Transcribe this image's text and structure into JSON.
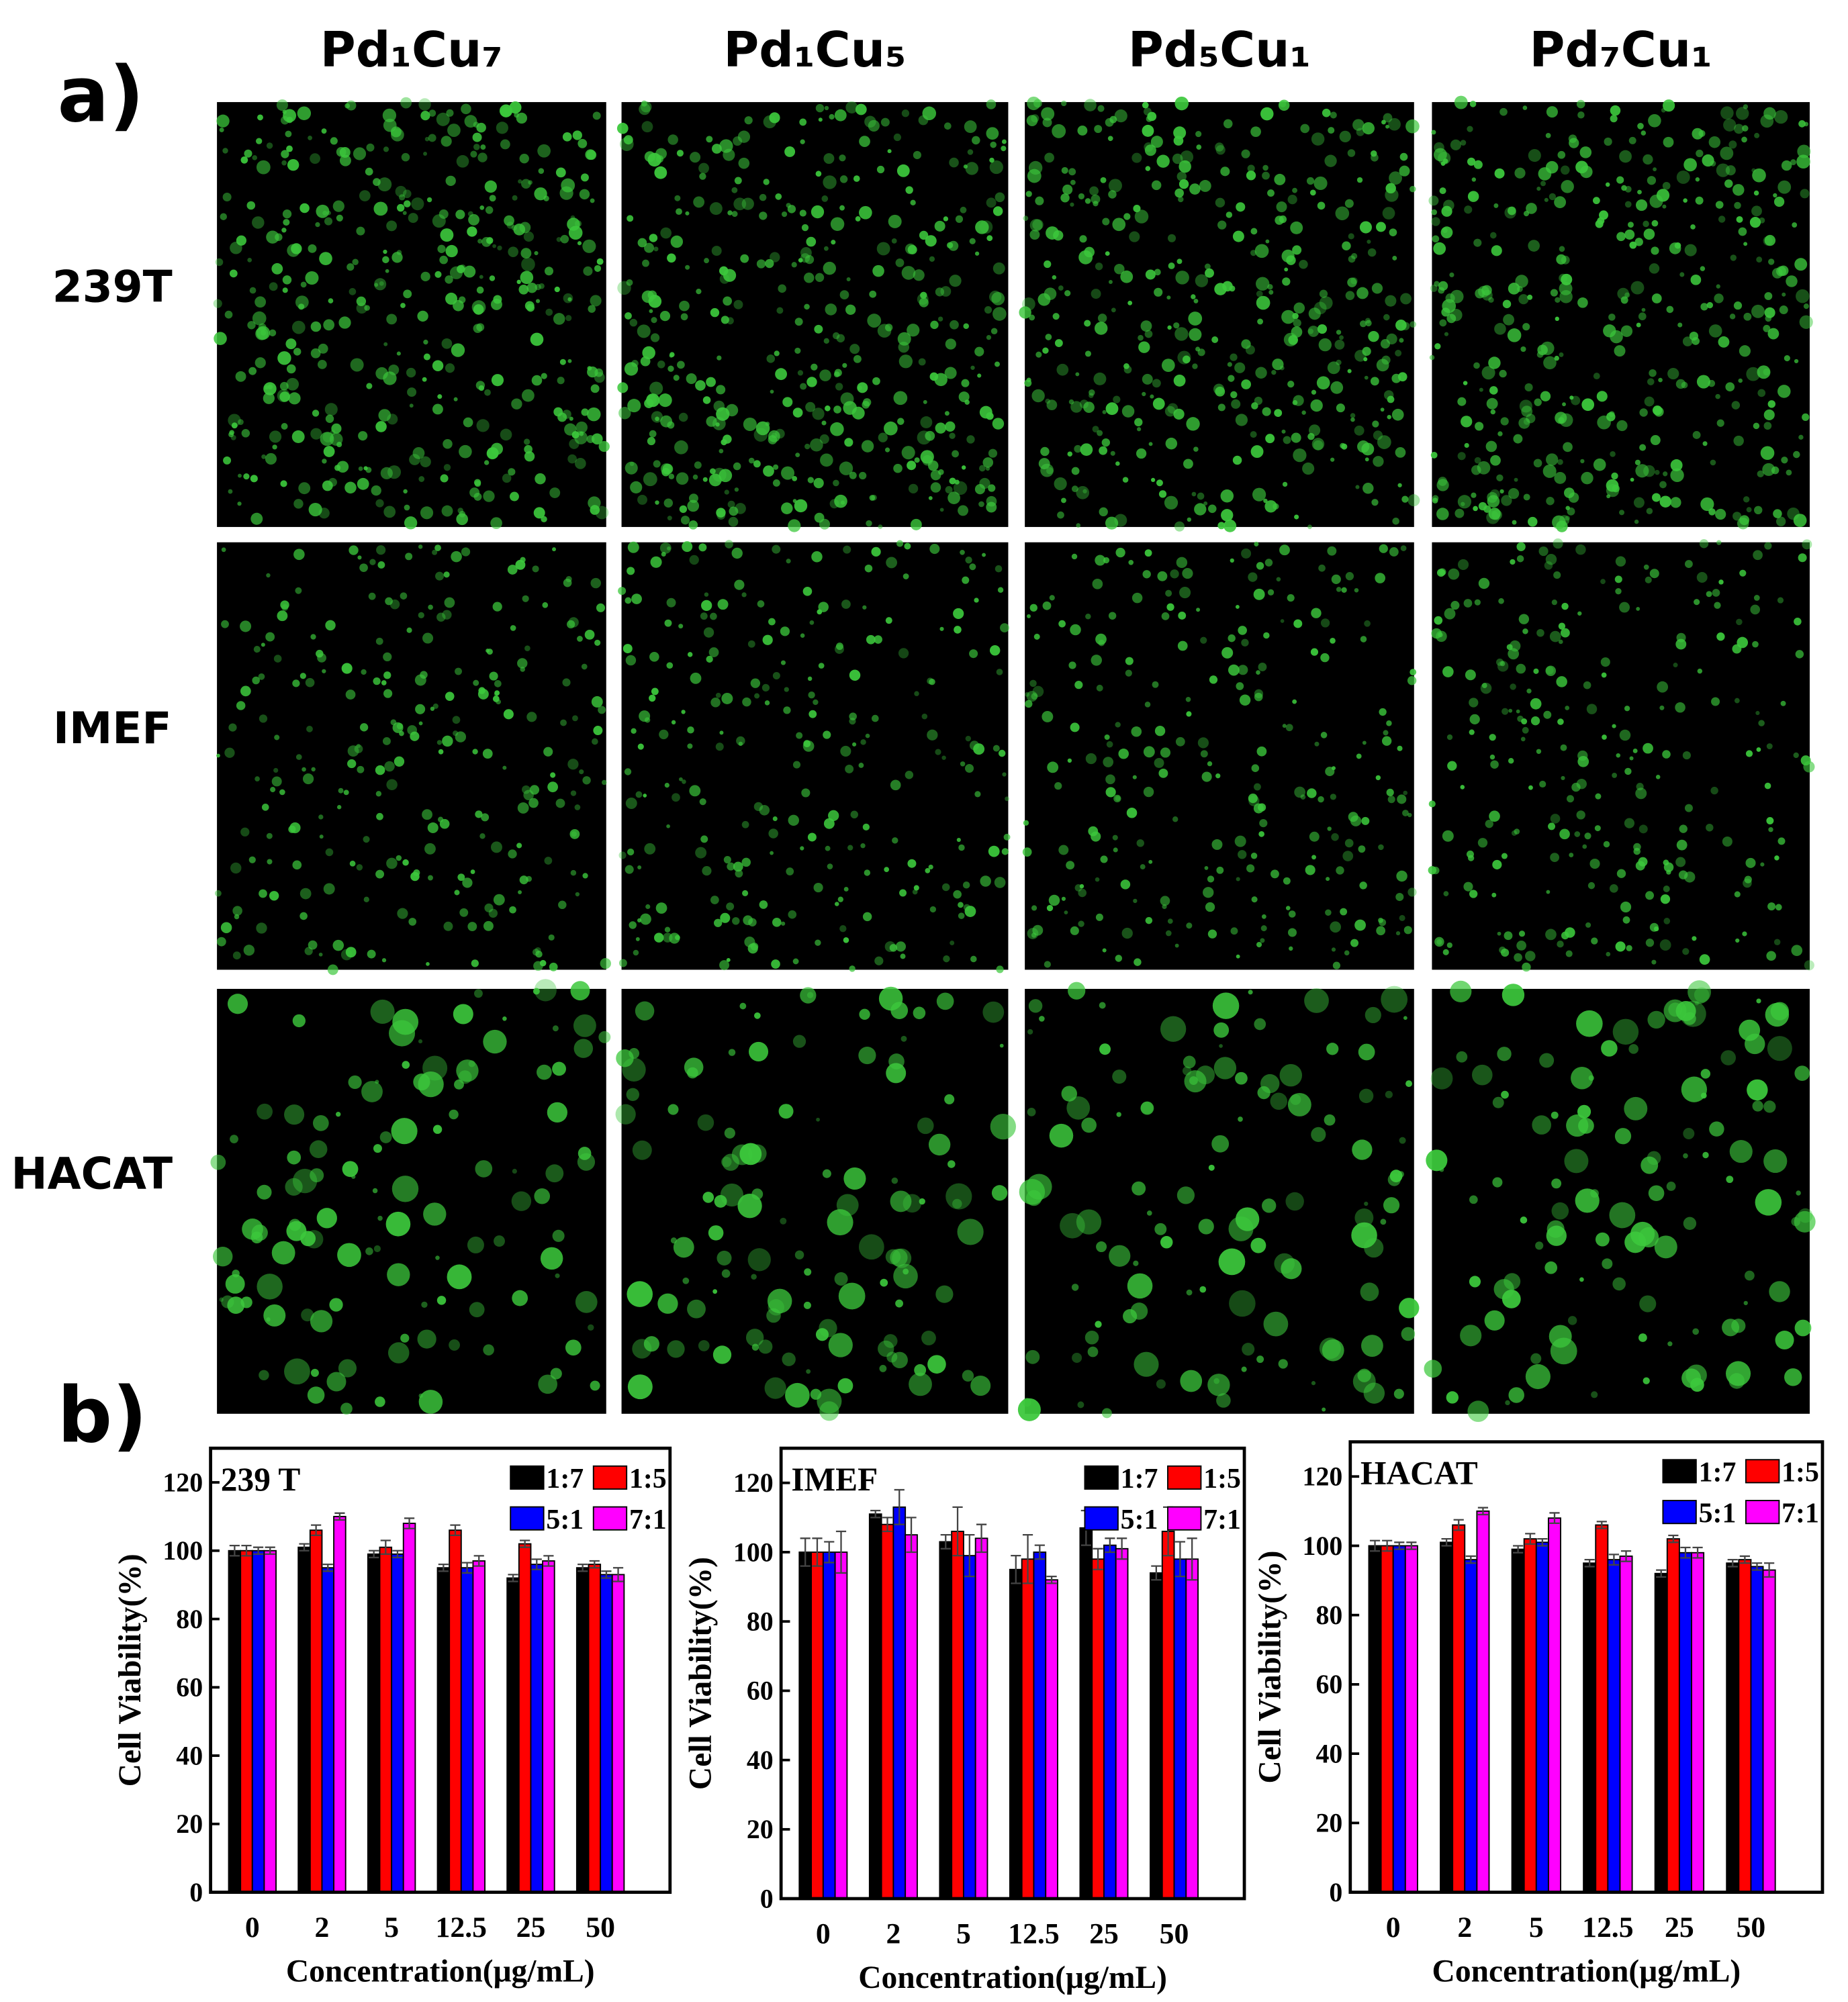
{
  "panel_labels": [
    "a)",
    "b)"
  ],
  "panel_a": {
    "columns": [
      "Pd₁Cu₇",
      "Pd₁Cu₅",
      "Pd₅Cu₁",
      "Pd₇Cu₁"
    ],
    "rows": [
      "239T",
      "IMEF",
      "HACAT"
    ]
  },
  "chart_data": [
    {
      "type": "bar",
      "title": "239 T",
      "x_label": "Concentration(μg/mL)",
      "y_label": "Cell Viability(%)",
      "categories": [
        "0",
        "2",
        "5",
        "12.5",
        "25",
        "50"
      ],
      "ylim": [
        0,
        130
      ],
      "yticks": [
        0,
        20,
        40,
        60,
        80,
        100,
        120
      ],
      "legend": "upper right",
      "series": [
        {
          "name": "1:7",
          "color": "#000000",
          "values": [
            100,
            101,
            99,
            95,
            92,
            95
          ],
          "errors": [
            1.5,
            1,
            1,
            1,
            1,
            1
          ]
        },
        {
          "name": "1:5",
          "color": "#ff0000",
          "values": [
            100,
            106,
            101,
            106,
            102,
            96
          ],
          "errors": [
            1.5,
            1.5,
            2,
            1.5,
            1,
            1
          ]
        },
        {
          "name": "5:1",
          "color": "#0000ff",
          "values": [
            100,
            95,
            99,
            95,
            96,
            93
          ],
          "errors": [
            1,
            1,
            1,
            1.5,
            1.5,
            1
          ]
        },
        {
          "name": "7:1",
          "color": "#ff00ff",
          "values": [
            100,
            110,
            108,
            97,
            97,
            93
          ],
          "errors": [
            1,
            1,
            1.5,
            1.5,
            1.5,
            2
          ]
        }
      ]
    },
    {
      "type": "bar",
      "title": "IMEF",
      "x_label": "Concentration(μg/mL)",
      "y_label": "Cell Viability(%)",
      "categories": [
        "0",
        "2",
        "5",
        "12.5",
        "25",
        "50"
      ],
      "ylim": [
        0,
        130
      ],
      "yticks": [
        0,
        20,
        40,
        60,
        80,
        100,
        120
      ],
      "legend": "upper right",
      "series": [
        {
          "name": "1:7",
          "color": "#000000",
          "values": [
            100,
            111,
            103,
            95,
            107,
            94
          ],
          "errors": [
            4,
            1,
            2,
            4,
            5,
            2
          ]
        },
        {
          "name": "1:5",
          "color": "#ff0000",
          "values": [
            100,
            108,
            106,
            98,
            98,
            106
          ],
          "errors": [
            4,
            2,
            7,
            7,
            3,
            7
          ]
        },
        {
          "name": "5:1",
          "color": "#0000ff",
          "values": [
            100,
            113,
            99,
            100,
            102,
            98
          ],
          "errors": [
            3,
            5,
            6,
            2,
            2,
            5
          ]
        },
        {
          "name": "7:1",
          "color": "#ff00ff",
          "values": [
            100,
            105,
            104,
            92,
            101,
            98
          ],
          "errors": [
            6,
            5,
            4,
            1,
            3,
            6
          ]
        }
      ]
    },
    {
      "type": "bar",
      "title": "HACAT",
      "x_label": "Concentration(μg/mL)",
      "y_label": "Cell Viability(%)",
      "categories": [
        "0",
        "2",
        "5",
        "12.5",
        "25",
        "50"
      ],
      "ylim": [
        0,
        130
      ],
      "yticks": [
        0,
        20,
        40,
        60,
        80,
        100,
        120
      ],
      "legend": "upper right",
      "series": [
        {
          "name": "1:7",
          "color": "#000000",
          "values": [
            100,
            101,
            99,
            95,
            92,
            95
          ],
          "errors": [
            1.5,
            1,
            1,
            1,
            1,
            1
          ]
        },
        {
          "name": "1:5",
          "color": "#ff0000",
          "values": [
            100,
            106,
            102,
            106,
            102,
            96
          ],
          "errors": [
            1.5,
            1.5,
            1.5,
            1,
            1,
            1
          ]
        },
        {
          "name": "5:1",
          "color": "#0000ff",
          "values": [
            100,
            96,
            101,
            96,
            98,
            94
          ],
          "errors": [
            1,
            1,
            1,
            1.5,
            1.5,
            1
          ]
        },
        {
          "name": "7:1",
          "color": "#ff00ff",
          "values": [
            100,
            110,
            108,
            97,
            98,
            93
          ],
          "errors": [
            1,
            1,
            1.5,
            1.5,
            1.5,
            2
          ]
        }
      ]
    }
  ]
}
